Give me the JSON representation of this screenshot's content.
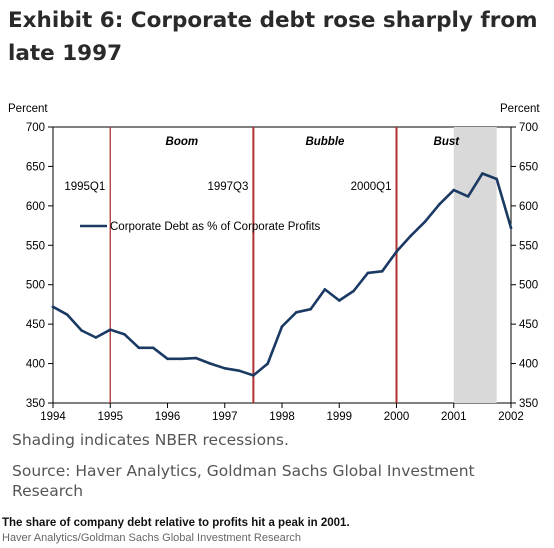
{
  "header": {
    "title": "Exhibit 6: Corporate debt rose sharply from late 1997"
  },
  "notes": {
    "shading": "Shading indicates NBER recessions.",
    "source": "Source: Haver Analytics, Goldman Sachs Global Investment Research"
  },
  "footer": {
    "caption": "The share of company debt relative to profits hit a peak in 2001.",
    "credit": "Haver Analytics/Goldman Sachs Global Investment Research"
  },
  "chart_data": {
    "type": "line",
    "title": "",
    "ylabel_left": "Percent",
    "ylabel_right": "Percent",
    "xlabel": "",
    "xlim": [
      1994.0,
      2002.0
    ],
    "ylim": [
      350,
      700
    ],
    "x_ticks": [
      1994,
      1995,
      1996,
      1997,
      1998,
      1999,
      2000,
      2001,
      2002
    ],
    "y_ticks": [
      350,
      400,
      450,
      500,
      550,
      600,
      650,
      700
    ],
    "grid": false,
    "legend_position": "left",
    "recession_shading": [
      {
        "start": 2001.0,
        "end": 2001.75
      }
    ],
    "series": [
      {
        "name": "Corporate Debt as % of Corporate Profits",
        "color": "#1b3a63",
        "x": [
          1994.0,
          1994.25,
          1994.5,
          1994.75,
          1995.0,
          1995.25,
          1995.5,
          1995.75,
          1996.0,
          1996.25,
          1996.5,
          1996.75,
          1997.0,
          1997.25,
          1997.5,
          1997.75,
          1998.0,
          1998.25,
          1998.5,
          1998.75,
          1999.0,
          1999.25,
          1999.5,
          1999.75,
          2000.0,
          2000.25,
          2000.5,
          2000.75,
          2001.0,
          2001.25,
          2001.5,
          2001.75,
          2002.0
        ],
        "values": [
          472,
          462,
          442,
          433,
          443,
          437,
          420,
          420,
          406,
          406,
          407,
          400,
          394,
          391,
          385,
          400,
          447,
          465,
          469,
          494,
          480,
          492,
          515,
          517,
          542,
          562,
          580,
          602,
          620,
          612,
          641,
          634,
          572
        ]
      }
    ],
    "vertical_markers": [
      {
        "x": 1995.0,
        "label": "1995Q1",
        "color": "#b03030"
      },
      {
        "x": 1997.5,
        "label": "1997Q3",
        "color": "#b03030"
      },
      {
        "x": 2000.0,
        "label": "2000Q1",
        "color": "#b03030"
      }
    ],
    "period_labels": [
      {
        "x": 1996.25,
        "label": "Boom"
      },
      {
        "x": 1998.75,
        "label": "Bubble"
      },
      {
        "x": 2000.87,
        "label": "Bust"
      }
    ]
  }
}
